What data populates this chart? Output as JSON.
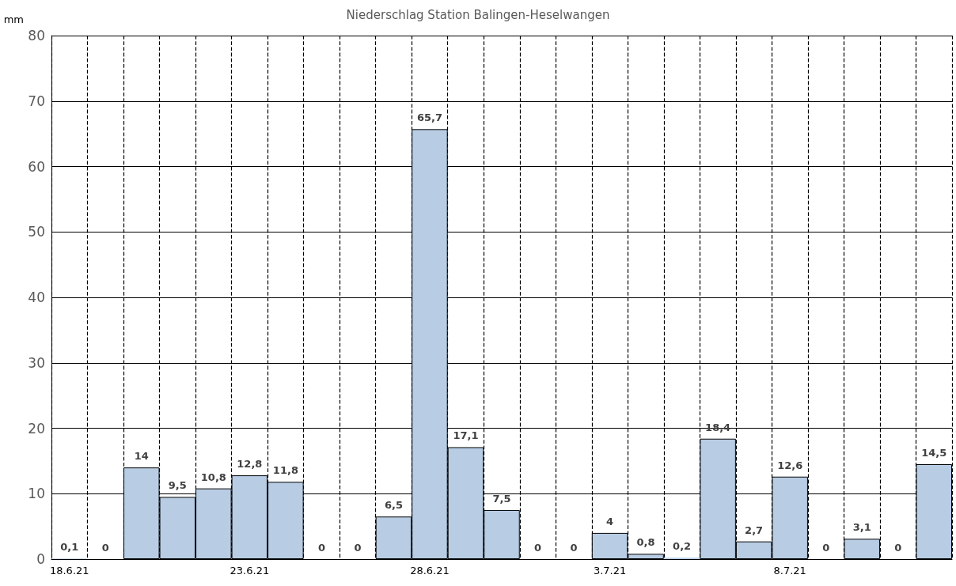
{
  "chart_data": {
    "type": "bar",
    "title": "Niederschlag Station Balingen-Heselwangen",
    "ylabel": "mm",
    "categories": [
      "18.6.21",
      null,
      null,
      null,
      null,
      "23.6.21",
      null,
      null,
      null,
      null,
      "28.6.21",
      null,
      null,
      null,
      null,
      "3.7.21",
      null,
      null,
      null,
      null,
      "8.7.21",
      null,
      null,
      null,
      null
    ],
    "values": [
      0.1,
      0,
      14,
      9.5,
      10.8,
      12.8,
      11.8,
      0,
      0,
      6.5,
      65.7,
      17.1,
      7.5,
      0,
      0,
      4,
      0.8,
      0.2,
      18.4,
      2.7,
      12.6,
      0,
      3.1,
      0,
      14.5
    ],
    "value_labels": [
      "0,1",
      "0",
      "14",
      "9,5",
      "10,8",
      "12,8",
      "11,8",
      "0",
      "0",
      "6,5",
      "65,7",
      "17,1",
      "7,5",
      "0",
      "0",
      "4",
      "0,8",
      "0,2",
      "18,4",
      "2,7",
      "12,6",
      "0",
      "3,1",
      "0",
      "14,5"
    ],
    "color": "#b8cce4",
    "ylim": [
      0,
      80
    ],
    "yticks": [
      0,
      10,
      20,
      30,
      40,
      50,
      60,
      70,
      80
    ],
    "grid": true
  }
}
